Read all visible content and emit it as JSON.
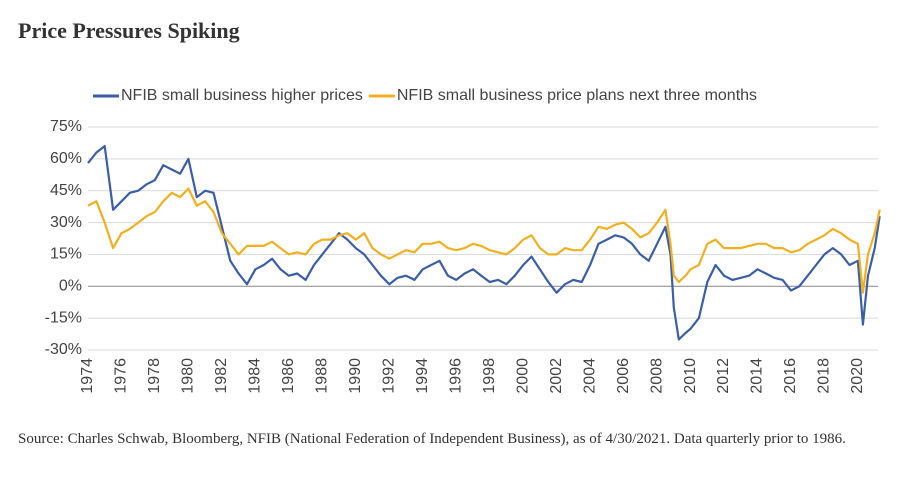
{
  "chart_data": {
    "type": "line",
    "title": "Price Pressures Spiking",
    "source": "Source: Charles Schwab, Bloomberg, NFIB (National Federation of Independent Business), as of 4/30/2021. Data quarterly prior to 1986.",
    "x": [
      1974,
      1974.5,
      1975,
      1975.5,
      1976,
      1976.5,
      1977,
      1977.5,
      1978,
      1978.5,
      1979,
      1979.5,
      1980,
      1980.5,
      1981,
      1981.5,
      1982,
      1982.5,
      1983,
      1983.5,
      1984,
      1984.5,
      1985,
      1985.5,
      1986,
      1986.5,
      1987,
      1987.5,
      1988,
      1988.5,
      1989,
      1989.5,
      1990,
      1990.5,
      1991,
      1991.5,
      1992,
      1992.5,
      1993,
      1993.5,
      1994,
      1994.5,
      1995,
      1995.5,
      1996,
      1996.5,
      1997,
      1997.5,
      1998,
      1998.5,
      1999,
      1999.5,
      2000,
      2000.5,
      2001,
      2001.5,
      2002,
      2002.5,
      2003,
      2003.5,
      2004,
      2004.5,
      2005,
      2005.5,
      2006,
      2006.5,
      2007,
      2007.5,
      2008,
      2008.5,
      2008.8,
      2009,
      2009.3,
      2009.7,
      2010,
      2010.5,
      2011,
      2011.5,
      2012,
      2012.5,
      2013,
      2013.5,
      2014,
      2014.5,
      2015,
      2015.5,
      2016,
      2016.5,
      2017,
      2017.5,
      2018,
      2018.5,
      2019,
      2019.5,
      2020,
      2020.3,
      2020.6,
      2021,
      2021.3
    ],
    "series": [
      {
        "name": "NFIB small business higher prices",
        "color": "#3a5ea8",
        "values": [
          58,
          63,
          66,
          36,
          40,
          44,
          45,
          48,
          50,
          57,
          55,
          53,
          60,
          42,
          45,
          44,
          28,
          12,
          6,
          1,
          8,
          10,
          13,
          8,
          5,
          6,
          3,
          10,
          15,
          20,
          25,
          22,
          18,
          15,
          10,
          5,
          1,
          4,
          5,
          3,
          8,
          10,
          12,
          5,
          3,
          6,
          8,
          5,
          2,
          3,
          1,
          5,
          10,
          14,
          8,
          2,
          -3,
          1,
          3,
          2,
          10,
          20,
          22,
          24,
          23,
          20,
          15,
          12,
          20,
          28,
          15,
          -10,
          -25,
          -22,
          -20,
          -15,
          2,
          10,
          5,
          3,
          4,
          5,
          8,
          6,
          4,
          3,
          -2,
          0,
          5,
          10,
          15,
          18,
          15,
          10,
          12,
          -18,
          5,
          18,
          33
        ]
      },
      {
        "name": "NFIB small business price plans next three months",
        "color": "#f2b01e",
        "values": [
          38,
          40,
          30,
          18,
          25,
          27,
          30,
          33,
          35,
          40,
          44,
          42,
          46,
          38,
          40,
          35,
          25,
          20,
          15,
          19,
          19,
          19,
          21,
          18,
          15,
          16,
          15,
          20,
          22,
          22,
          24,
          25,
          22,
          25,
          18,
          15,
          13,
          15,
          17,
          16,
          20,
          20,
          21,
          18,
          17,
          18,
          20,
          19,
          17,
          16,
          15,
          18,
          22,
          24,
          18,
          15,
          15,
          18,
          17,
          17,
          22,
          28,
          27,
          29,
          30,
          27,
          23,
          25,
          30,
          36,
          20,
          5,
          2,
          5,
          8,
          10,
          20,
          22,
          18,
          18,
          18,
          19,
          20,
          20,
          18,
          18,
          16,
          17,
          20,
          22,
          24,
          27,
          25,
          22,
          20,
          -3,
          15,
          25,
          36
        ]
      }
    ],
    "xlim": [
      1974,
      2021.2
    ],
    "xticks": [
      1974,
      1976,
      1978,
      1980,
      1982,
      1984,
      1986,
      1988,
      1990,
      1992,
      1994,
      1996,
      1998,
      2000,
      2002,
      2004,
      2006,
      2008,
      2010,
      2012,
      2014,
      2016,
      2018,
      2020
    ],
    "ylim": [
      -30,
      75
    ],
    "yticks": [
      {
        "value": -30,
        "label": "-30%"
      },
      {
        "value": -15,
        "label": "-15%"
      },
      {
        "value": 0,
        "label": "0%"
      },
      {
        "value": 15,
        "label": "15%"
      },
      {
        "value": 30,
        "label": "30%"
      },
      {
        "value": 45,
        "label": "45%"
      },
      {
        "value": 60,
        "label": "60%"
      },
      {
        "value": 75,
        "label": "75%"
      }
    ],
    "grid": true,
    "legend": "top"
  }
}
